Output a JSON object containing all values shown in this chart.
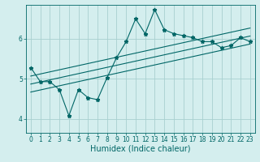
{
  "xlabel": "Humidex (Indice chaleur)",
  "bg_color": "#d4eeee",
  "grid_color": "#a8d0d0",
  "line_color": "#006666",
  "xlim": [
    -0.5,
    23.5
  ],
  "ylim": [
    3.65,
    6.85
  ],
  "xticks": [
    0,
    1,
    2,
    3,
    4,
    5,
    6,
    7,
    8,
    9,
    10,
    11,
    12,
    13,
    14,
    15,
    16,
    17,
    18,
    19,
    20,
    21,
    22,
    23
  ],
  "yticks": [
    4,
    5,
    6
  ],
  "main_x": [
    0,
    1,
    2,
    3,
    4,
    5,
    6,
    7,
    8,
    9,
    10,
    11,
    12,
    13,
    14,
    15,
    16,
    17,
    18,
    19,
    20,
    21,
    22,
    23
  ],
  "main_y": [
    5.28,
    4.93,
    4.93,
    4.73,
    4.08,
    4.73,
    4.53,
    4.48,
    5.03,
    5.53,
    5.93,
    6.5,
    6.13,
    6.73,
    6.23,
    6.13,
    6.08,
    6.03,
    5.93,
    5.93,
    5.78,
    5.83,
    6.03,
    5.93
  ],
  "reg_line_x": [
    0,
    23
  ],
  "reg_line_y": [
    4.87,
    6.07
  ],
  "upper_line_y": [
    5.07,
    6.27
  ],
  "lower_line_y": [
    4.67,
    5.87
  ],
  "xlabel_fontsize": 7,
  "tick_fontsize": 5.5,
  "linewidth": 0.8,
  "marker_size": 3.5
}
